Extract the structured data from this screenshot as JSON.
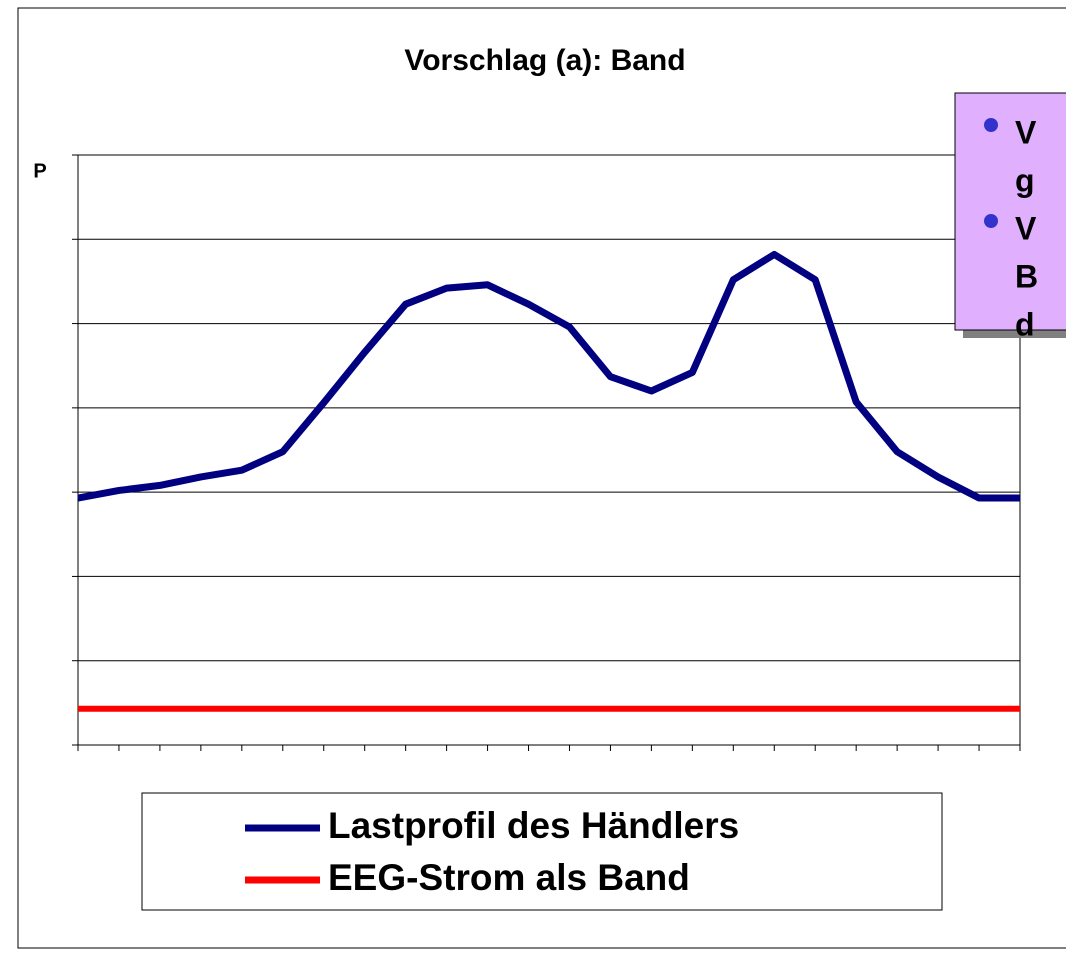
{
  "chart_data": {
    "type": "line",
    "title": "Vorschlag (a): Band",
    "y_label": "P",
    "categories": [
      null,
      null,
      null,
      null,
      null,
      null,
      null,
      null,
      null,
      null,
      null,
      null,
      null,
      null,
      null,
      null,
      null,
      null,
      null,
      null,
      null,
      null,
      null,
      null
    ],
    "series": [
      {
        "name": "Lastprofil des Händlers",
        "color": "#000080",
        "values": [
          2.93,
          3.02,
          3.08,
          3.18,
          3.26,
          3.48,
          4.06,
          4.66,
          5.23,
          5.42,
          5.46,
          5.23,
          4.96,
          4.37,
          4.2,
          4.42,
          5.52,
          5.82,
          5.52,
          4.07,
          3.48,
          3.18,
          2.93,
          2.93
        ]
      },
      {
        "name": "EEG-Strom als Band",
        "color": "#ff0000",
        "values": [
          0.43,
          0.43,
          0.43,
          0.43,
          0.43,
          0.43,
          0.43,
          0.43,
          0.43,
          0.43,
          0.43,
          0.43,
          0.43,
          0.43,
          0.43,
          0.43,
          0.43,
          0.43,
          0.43,
          0.43,
          0.43,
          0.43,
          0.43,
          0.43
        ]
      }
    ],
    "ylim": [
      0,
      7
    ],
    "yticks": [
      0,
      1,
      2,
      3,
      4,
      5,
      6,
      7
    ],
    "grid": true,
    "callout": {
      "bullets": [
        [
          "V",
          "g"
        ],
        [
          "V",
          "B",
          "d"
        ]
      ]
    }
  }
}
